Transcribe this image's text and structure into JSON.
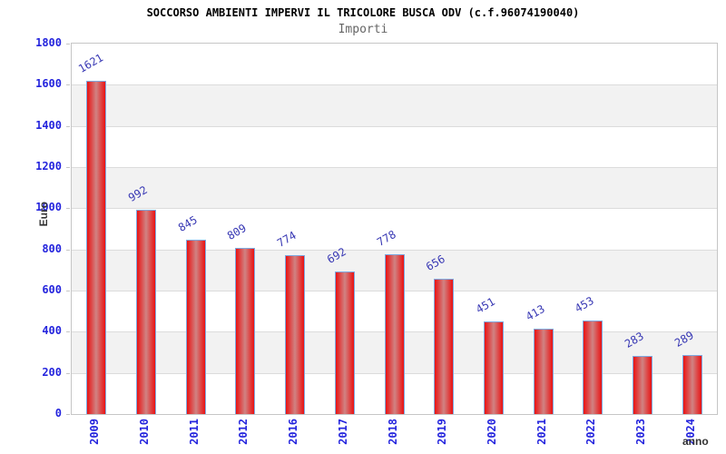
{
  "chart_data": {
    "type": "bar",
    "title": "SOCCORSO AMBIENTI IMPERVI IL TRICOLORE BUSCA ODV (c.f.96074190040)",
    "subtitle": "Importi",
    "xlabel": "anno",
    "ylabel": "Euro",
    "categories": [
      "2009",
      "2010",
      "2011",
      "2012",
      "2016",
      "2017",
      "2018",
      "2019",
      "2020",
      "2021",
      "2022",
      "2023",
      "2024"
    ],
    "values": [
      1621,
      992,
      845,
      809,
      774,
      692,
      778,
      656,
      451,
      413,
      453,
      283,
      289
    ],
    "ylim": [
      0,
      1800
    ],
    "ytick_step": 200,
    "yticks": [
      "0",
      "200",
      "400",
      "600",
      "800",
      "1000",
      "1200",
      "1400",
      "1600",
      "1800"
    ],
    "grid": true,
    "legend": "none",
    "colors": {
      "bar_edge_red": "#ea1212",
      "bar_center_red": "#d08383",
      "bar_border": "#7ea9e0",
      "value_label": "#3838b4",
      "tick_label": "#2424dd",
      "axis_title": "#333333",
      "band_gray": "#f2f2f2",
      "band_white": "#ffffff",
      "gridline": "#dcdcdc",
      "plot_border": "#c6c6c6",
      "title_color": "#000000",
      "subtitle_color": "#666666"
    }
  }
}
